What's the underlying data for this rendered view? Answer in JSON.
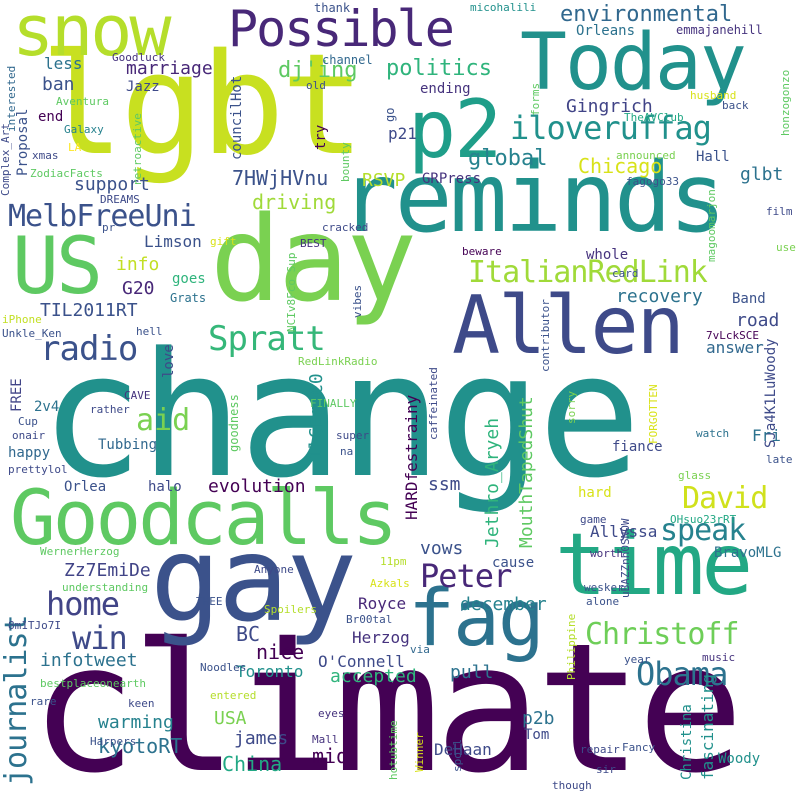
{
  "palette": {
    "dark_purple": "#440154",
    "indigo": "#3b528b",
    "blue": "#2c728e",
    "teal": "#21918c",
    "green_teal": "#28ae80",
    "green": "#5ec962",
    "light_green": "#addc30",
    "yellow": "#fde725"
  },
  "words": [
    {
      "text": "change",
      "color": "#21918c"
    },
    {
      "text": "climate",
      "color": "#440154"
    },
    {
      "text": "lgbt",
      "color": "#c8e020"
    },
    {
      "text": "day",
      "color": "#7ad151"
    },
    {
      "text": "reminds",
      "color": "#21918c"
    },
    {
      "text": "gay",
      "color": "#3b528b"
    },
    {
      "text": "Goodcalls",
      "color": "#5ec962"
    },
    {
      "text": "time",
      "color": "#22a884"
    },
    {
      "text": "Allen",
      "color": "#3e4a89"
    },
    {
      "text": "fag",
      "color": "#2c728e"
    },
    {
      "text": "Today",
      "color": "#21918c"
    },
    {
      "text": "p2",
      "color": "#1f9e89"
    },
    {
      "text": "snow",
      "color": "#b5de2b"
    },
    {
      "text": "Possible",
      "color": "#482878"
    },
    {
      "text": "US",
      "color": "#5ec962"
    },
    {
      "text": "iloveruffag",
      "color": "#21918c"
    },
    {
      "text": "MelbFreeUni",
      "color": "#3b528b"
    },
    {
      "text": "ItalianRedLink",
      "color": "#a0da39"
    },
    {
      "text": "radio",
      "color": "#3b528b"
    },
    {
      "text": "Spratt",
      "color": "#35b779"
    },
    {
      "text": "environmental",
      "color": "#31688e"
    },
    {
      "text": "politics",
      "color": "#2fb47c"
    },
    {
      "text": "Christoff",
      "color": "#6ece58"
    },
    {
      "text": "Obama",
      "color": "#2c728e"
    },
    {
      "text": "Peter",
      "color": "#482878"
    },
    {
      "text": "David",
      "color": "#d0e11c"
    },
    {
      "text": "speak",
      "color": "#26828e"
    },
    {
      "text": "home",
      "color": "#414487"
    },
    {
      "text": "win",
      "color": "#3e4a89"
    },
    {
      "text": "journalist",
      "color": "#2c728e"
    },
    {
      "text": "aid",
      "color": "#7ad151"
    },
    {
      "text": "marriage",
      "color": "#482878"
    },
    {
      "text": "dj'ing",
      "color": "#5ec962"
    },
    {
      "text": "Gingrich",
      "color": "#414487"
    },
    {
      "text": "Chicago",
      "color": "#d8e219"
    },
    {
      "text": "global",
      "color": "#26828e"
    },
    {
      "text": "support",
      "color": "#3b528b"
    },
    {
      "text": "7HWjHVnu",
      "color": "#3b528b"
    },
    {
      "text": "RSVP",
      "color": "#b5de2b"
    },
    {
      "text": "GRPress",
      "color": "#46337e"
    },
    {
      "text": "glbt",
      "color": "#2c728e"
    },
    {
      "text": "driving",
      "color": "#a0da39"
    },
    {
      "text": "info",
      "color": "#c2df23"
    },
    {
      "text": "Limson",
      "color": "#3b528b"
    },
    {
      "text": "G20",
      "color": "#482878"
    },
    {
      "text": "TIL2011RT",
      "color": "#3b528b"
    },
    {
      "text": "recovery",
      "color": "#2c728e"
    },
    {
      "text": "road",
      "color": "#3e4a89"
    },
    {
      "text": "Band",
      "color": "#3b528b"
    },
    {
      "text": "answer",
      "color": "#31688e"
    },
    {
      "text": "whole",
      "color": "#46337e"
    },
    {
      "text": "evolution",
      "color": "#440154"
    },
    {
      "text": "ssm",
      "color": "#3e4a89"
    },
    {
      "text": "Zz7EmiDe",
      "color": "#414487"
    },
    {
      "text": "vows",
      "color": "#3b528b"
    },
    {
      "text": "december",
      "color": "#26828e"
    },
    {
      "text": "Allyssa",
      "color": "#3e4a89"
    },
    {
      "text": "BravoMLG",
      "color": "#2c728e"
    },
    {
      "text": "Royce",
      "color": "#482878"
    },
    {
      "text": "BC",
      "color": "#3e4a89"
    },
    {
      "text": "nice",
      "color": "#440154"
    },
    {
      "text": "infotweet",
      "color": "#2c728e"
    },
    {
      "text": "Herzog",
      "color": "#46337e"
    },
    {
      "text": "O'Connell",
      "color": "#3e4a89"
    },
    {
      "text": "pull",
      "color": "#2c728e"
    },
    {
      "text": "Toronto",
      "color": "#21918c"
    },
    {
      "text": "accepted",
      "color": "#2fb47c"
    },
    {
      "text": "USA",
      "color": "#7ad151"
    },
    {
      "text": "warming",
      "color": "#26828e"
    },
    {
      "text": "kyotoRT",
      "color": "#2c728e"
    },
    {
      "text": "james",
      "color": "#3e4a89"
    },
    {
      "text": "mid",
      "color": "#440154"
    },
    {
      "text": "China",
      "color": "#22a884"
    },
    {
      "text": "DeHaan",
      "color": "#3e4a89"
    },
    {
      "text": "p2b",
      "color": "#2c728e"
    },
    {
      "text": "Tom",
      "color": "#3e4a89"
    },
    {
      "text": "Woody",
      "color": "#21918c"
    },
    {
      "text": "fascinating",
      "color": "#21918c"
    },
    {
      "text": "Christina",
      "color": "#21918c"
    },
    {
      "text": "HARDfestrainy",
      "color": "#440154"
    },
    {
      "text": "MouthTapedShut",
      "color": "#5ec962"
    },
    {
      "text": "Jethro_Aryeh",
      "color": "#2fb47c"
    },
    {
      "text": "1lCEgpC0",
      "color": "#21918c"
    },
    {
      "text": "SJa4K1LuWoody",
      "color": "#3e4a89"
    },
    {
      "text": "Fri",
      "color": "#2c728e"
    },
    {
      "text": "fiance",
      "color": "#3e4a89"
    },
    {
      "text": "hard",
      "color": "#d8e219"
    },
    {
      "text": "cause",
      "color": "#3b528b"
    },
    {
      "text": "Tubbing",
      "color": "#31688e"
    },
    {
      "text": "halo",
      "color": "#3e4a89"
    },
    {
      "text": "Orlea",
      "color": "#3b528b"
    },
    {
      "text": "happy",
      "color": "#31688e"
    },
    {
      "text": "2v4",
      "color": "#2c728e"
    },
    {
      "text": "FREE",
      "color": "#414487"
    },
    {
      "text": "love",
      "color": "#3e4a89"
    },
    {
      "text": "goes",
      "color": "#2fb47c"
    },
    {
      "text": "Grats",
      "color": "#2c728e"
    },
    {
      "text": "less",
      "color": "#2c728e"
    },
    {
      "text": "ban",
      "color": "#3b528b"
    },
    {
      "text": "end",
      "color": "#440154"
    },
    {
      "text": "Proposal",
      "color": "#3b528b"
    },
    {
      "text": "Jazz",
      "color": "#3e4a89"
    },
    {
      "text": "councilHot",
      "color": "#3b528b"
    },
    {
      "text": "Orleans",
      "color": "#2c728e"
    },
    {
      "text": "emmajanehill",
      "color": "#46337e"
    },
    {
      "text": "ending",
      "color": "#46337e"
    },
    {
      "text": "Hall",
      "color": "#3b528b"
    },
    {
      "text": "p21",
      "color": "#3e4a89"
    },
    {
      "text": "thank",
      "color": "#3b528b"
    },
    {
      "text": "micohalili",
      "color": "#21918c"
    },
    {
      "text": "channel",
      "color": "#31688e"
    },
    {
      "text": "Goodluck",
      "color": "#46337e"
    },
    {
      "text": "old",
      "color": "#3b528b"
    },
    {
      "text": "go",
      "color": "#3b528b"
    },
    {
      "text": "try",
      "color": "#440154"
    },
    {
      "text": "bounty",
      "color": "#5ec962"
    },
    {
      "text": "fagogo33",
      "color": "#3b528b"
    },
    {
      "text": "announced",
      "color": "#7ad151"
    },
    {
      "text": "TheAVClub",
      "color": "#22a884"
    },
    {
      "text": "husband",
      "color": "#d8e219"
    },
    {
      "text": "forms",
      "color": "#5ec962"
    },
    {
      "text": "honzogonzo",
      "color": "#5ec962"
    },
    {
      "text": "Aventura",
      "color": "#5ec962"
    },
    {
      "text": "Galaxy",
      "color": "#26828e"
    },
    {
      "text": "LA",
      "color": "#fde725"
    },
    {
      "text": "xmas",
      "color": "#3e4a89"
    },
    {
      "text": "ZodiacFacts",
      "color": "#5ec962"
    },
    {
      "text": "DREAMS",
      "color": "#3e4a89"
    },
    {
      "text": "pr",
      "color": "#3b528b"
    },
    {
      "text": "Complex_Art",
      "color": "#3e4a89"
    },
    {
      "text": "interested",
      "color": "#31688e"
    },
    {
      "text": "retroactive",
      "color": "#5ec962"
    },
    {
      "text": "gift",
      "color": "#d8e219"
    },
    {
      "text": "cracked",
      "color": "#3e4a89"
    },
    {
      "text": "BEST",
      "color": "#46337e"
    },
    {
      "text": "beware",
      "color": "#440154"
    },
    {
      "text": "card",
      "color": "#3b528b"
    },
    {
      "text": "magoomarjon",
      "color": "#5ec962"
    },
    {
      "text": "film",
      "color": "#3e4a89"
    },
    {
      "text": "use",
      "color": "#7ad151"
    },
    {
      "text": "7vLckSCE",
      "color": "#440154"
    },
    {
      "text": "RedLinkRadio",
      "color": "#7ad151"
    },
    {
      "text": "NCIv8Fco Sup",
      "color": "#5ec962"
    },
    {
      "text": "iPhone",
      "color": "#c2df23"
    },
    {
      "text": "Unkle_Ken",
      "color": "#3b528b"
    },
    {
      "text": "hell",
      "color": "#3b528b"
    },
    {
      "text": "vibes",
      "color": "#3b528b"
    },
    {
      "text": "contributor",
      "color": "#3b528b"
    },
    {
      "text": "FORGOTTEN",
      "color": "#d8e219"
    },
    {
      "text": "CAVE",
      "color": "#46337e"
    },
    {
      "text": "rather",
      "color": "#3e4a89"
    },
    {
      "text": "Cup",
      "color": "#3b528b"
    },
    {
      "text": "onair",
      "color": "#3e4a89"
    },
    {
      "text": "prettylol",
      "color": "#3e4a89"
    },
    {
      "text": "goodness",
      "color": "#5ec962"
    },
    {
      "text": "FINALLY",
      "color": "#5ec962"
    },
    {
      "text": "caffeinated",
      "color": "#3e4a89"
    },
    {
      "text": "super",
      "color": "#3e4a89"
    },
    {
      "text": "na",
      "color": "#3b528b"
    },
    {
      "text": "sorry",
      "color": "#7ad151"
    },
    {
      "text": "watch",
      "color": "#2c728e"
    },
    {
      "text": "late",
      "color": "#3b528b"
    },
    {
      "text": "glass",
      "color": "#7ad151"
    },
    {
      "text": "game",
      "color": "#3e4a89"
    },
    {
      "text": "OHsuo23rRT",
      "color": "#22a884"
    },
    {
      "text": "uBAZZnh0SNOW",
      "color": "#3e4a89"
    },
    {
      "text": "worth",
      "color": "#46337e"
    },
    {
      "text": "wesker",
      "color": "#3b528b"
    },
    {
      "text": "alone",
      "color": "#3b528b"
    },
    {
      "text": "WernerHerzog",
      "color": "#5ec962"
    },
    {
      "text": "Anyone",
      "color": "#3e4a89"
    },
    {
      "text": "understanding",
      "color": "#5ec962"
    },
    {
      "text": "11pm",
      "color": "#b5de2b"
    },
    {
      "text": "Azkals",
      "color": "#d8e219"
    },
    {
      "text": "THEE",
      "color": "#3b528b"
    },
    {
      "text": "8m1TJo7I",
      "color": "#3e4a89"
    },
    {
      "text": "Spoilers",
      "color": "#b5de2b"
    },
    {
      "text": "Br00tal",
      "color": "#3b528b"
    },
    {
      "text": "via",
      "color": "#31688e"
    },
    {
      "text": "Philippine",
      "color": "#b5de2b"
    },
    {
      "text": "Noodles",
      "color": "#3b528b"
    },
    {
      "text": "bestplaceonearth",
      "color": "#5ec962"
    },
    {
      "text": "year",
      "color": "#3b528b"
    },
    {
      "text": "music",
      "color": "#46337e"
    },
    {
      "text": "entered",
      "color": "#b5de2b"
    },
    {
      "text": "rare",
      "color": "#3b528b"
    },
    {
      "text": "keen",
      "color": "#3e4a89"
    },
    {
      "text": "eyes",
      "color": "#46337e"
    },
    {
      "text": "Harpers",
      "color": "#3b528b"
    },
    {
      "text": "Mall",
      "color": "#46337e"
    },
    {
      "text": "hotubtime",
      "color": "#5ec962"
    },
    {
      "text": "Winner",
      "color": "#d8e219"
    },
    {
      "text": "spoil",
      "color": "#3b528b"
    },
    {
      "text": "repair",
      "color": "#3e4a89"
    },
    {
      "text": "Fancy",
      "color": "#3b528b"
    },
    {
      "text": "sir",
      "color": "#3e4a89"
    },
    {
      "text": "though",
      "color": "#3e4a89"
    },
    {
      "text": "back",
      "color": "#3b528b"
    }
  ]
}
